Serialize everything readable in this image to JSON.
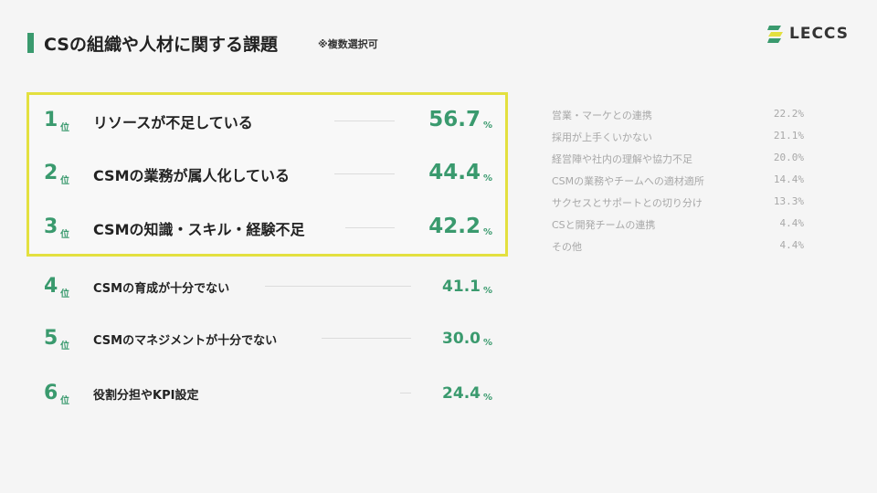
{
  "header": {
    "title": "CSの組織や人材に関する課題",
    "note": "※複数選択可"
  },
  "logo": {
    "text": "LECCS",
    "icon": "leccs-logo-icon"
  },
  "colors": {
    "accent": "#3a9a6e",
    "highlight_border": "#e3e03f",
    "muted": "#a8a8a8"
  },
  "ranking": [
    {
      "rank": "1",
      "unit": "位",
      "label": "リソースが不足している",
      "value": "56.7",
      "pct": "%"
    },
    {
      "rank": "2",
      "unit": "位",
      "label": "CSMの業務が属人化している",
      "value": "44.4",
      "pct": "%"
    },
    {
      "rank": "3",
      "unit": "位",
      "label": "CSMの知識・スキル・経験不足",
      "value": "42.2",
      "pct": "%"
    },
    {
      "rank": "4",
      "unit": "位",
      "label": "CSMの育成が十分でない",
      "value": "41.1",
      "pct": "%"
    },
    {
      "rank": "5",
      "unit": "位",
      "label": "CSMのマネジメントが十分でない",
      "value": "30.0",
      "pct": "%"
    },
    {
      "rank": "6",
      "unit": "位",
      "label": "役割分担やKPI設定",
      "value": "24.4",
      "pct": "%"
    }
  ],
  "others": [
    {
      "label": "営業・マーケとの連携",
      "value": "22.2%"
    },
    {
      "label": "採用が上手くいかない",
      "value": "21.1%"
    },
    {
      "label": "経営陣や社内の理解や協力不足",
      "value": "20.0%"
    },
    {
      "label": "CSMの業務やチームへの適材適所",
      "value": "14.4%"
    },
    {
      "label": "サクセスとサポートとの切り分け",
      "value": "13.3%"
    },
    {
      "label": "CSと開発チームの連携",
      "value": "4.4%"
    },
    {
      "label": "その他",
      "value": "4.4%"
    }
  ]
}
